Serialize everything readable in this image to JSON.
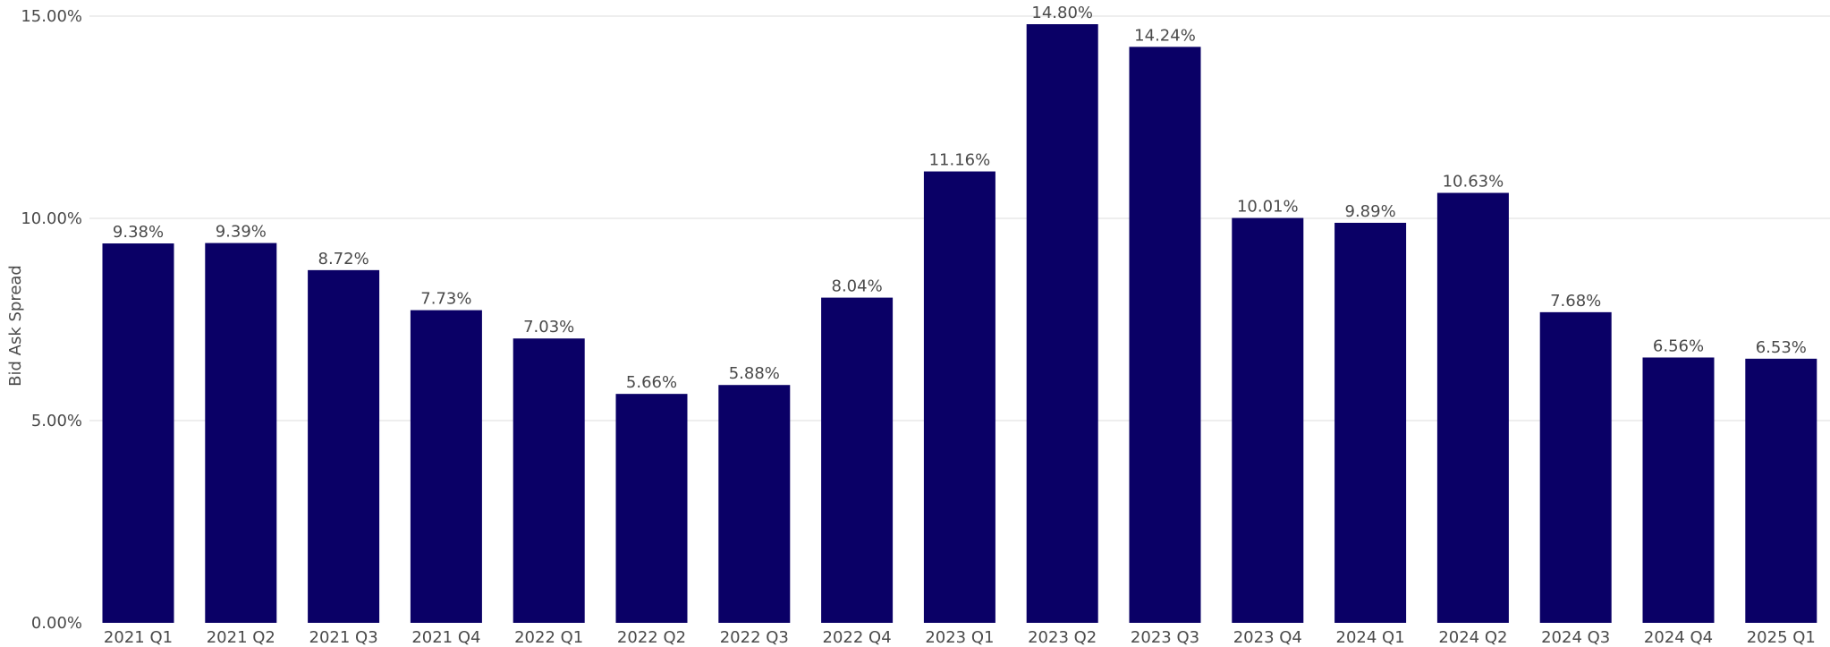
{
  "chart_data": {
    "type": "bar",
    "title": "",
    "xlabel": "",
    "ylabel": "Bid Ask Spread",
    "ylim": [
      0,
      15
    ],
    "yticks": [
      "0.00%",
      "5.00%",
      "10.00%",
      "15.00%"
    ],
    "ytick_values": [
      0,
      5,
      10,
      15
    ],
    "grid": true,
    "legend": "none",
    "bar_color": "#0a0066",
    "categories": [
      "2021 Q1",
      "2021 Q2",
      "2021 Q3",
      "2021 Q4",
      "2022 Q1",
      "2022 Q2",
      "2022 Q3",
      "2022 Q4",
      "2023 Q1",
      "2023 Q2",
      "2023 Q3",
      "2023 Q4",
      "2024 Q1",
      "2024 Q2",
      "2024 Q3",
      "2024 Q4",
      "2025 Q1"
    ],
    "values": [
      9.38,
      9.39,
      8.72,
      7.73,
      7.03,
      5.66,
      5.88,
      8.04,
      11.16,
      14.8,
      14.24,
      10.01,
      9.89,
      10.63,
      7.68,
      6.56,
      6.53
    ],
    "data_labels": [
      "9.38%",
      "9.39%",
      "8.72%",
      "7.73%",
      "7.03%",
      "5.66%",
      "5.88%",
      "8.04%",
      "11.16%",
      "14.80%",
      "14.24%",
      "10.01%",
      "9.89%",
      "10.63%",
      "7.68%",
      "6.56%",
      "6.53%"
    ]
  }
}
